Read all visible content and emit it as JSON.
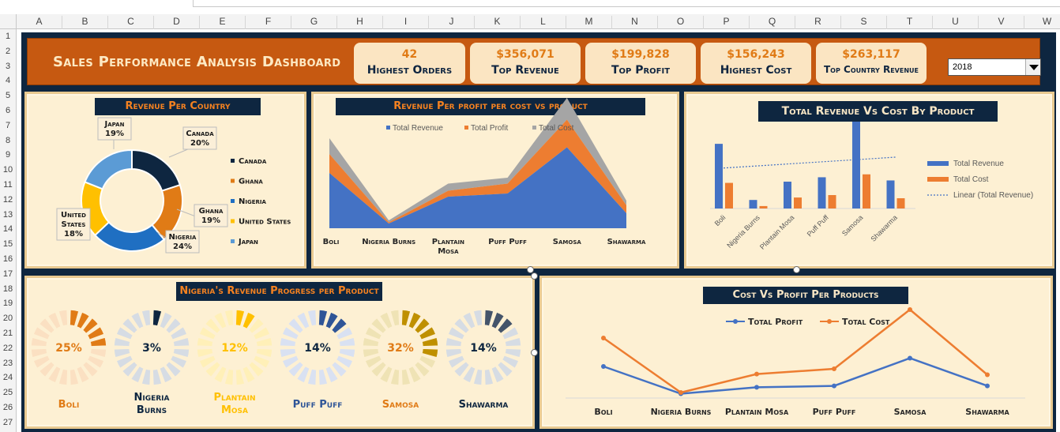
{
  "sheet": {
    "columns": [
      "A",
      "B",
      "C",
      "D",
      "E",
      "F",
      "G",
      "H",
      "I",
      "J",
      "K",
      "L",
      "M",
      "N",
      "O",
      "P",
      "Q",
      "R",
      "S",
      "T",
      "U",
      "V",
      "W"
    ],
    "rows": [
      "1",
      "2",
      "3",
      "4",
      "5",
      "6",
      "7",
      "8",
      "9",
      "10",
      "11",
      "12",
      "13",
      "14",
      "15",
      "16",
      "17",
      "18",
      "19",
      "20",
      "21",
      "22",
      "23",
      "24",
      "25",
      "26",
      "27"
    ]
  },
  "dashboard": {
    "title": "Sales Performance Analysis Dashboard",
    "kpis": [
      {
        "value": "42",
        "label": "Highest Orders"
      },
      {
        "value": "$356,071",
        "label": "Top Revenue"
      },
      {
        "value": "$199,828",
        "label": "Top Profit"
      },
      {
        "value": "$156,243",
        "label": "Highest Cost"
      },
      {
        "value": "$263,117",
        "label": "Top Country Revenue"
      }
    ],
    "year_filter": {
      "selected": "2018"
    }
  },
  "colors": {
    "navy": "#0e2640",
    "orange": "#c65911",
    "accent": "#f58220",
    "cream": "#fdf0d3",
    "blue": "#4472c4",
    "chart_orange": "#ed7d31",
    "gray": "#a5a5a5"
  },
  "chart_data": [
    {
      "type": "pie",
      "title": "Revenue Per Country",
      "categories": [
        "Canada",
        "Ghana",
        "Nigeria",
        "United States",
        "Japan"
      ],
      "values": [
        20,
        19,
        24,
        18,
        19
      ],
      "callouts": [
        {
          "name": "Canada",
          "pct": "20%"
        },
        {
          "name": "Ghana",
          "pct": "19%"
        },
        {
          "name": "Nigeria",
          "pct": "24%"
        },
        {
          "name": "United States",
          "pct": "18%"
        },
        {
          "name": "Japan",
          "pct": "19%"
        }
      ],
      "colors": [
        "#0e2640",
        "#e07b16",
        "#1f6fc2",
        "#ffc000",
        "#5b9bd5"
      ],
      "legend": "right"
    },
    {
      "type": "area",
      "title": "Revenue Per profit per cost vs product",
      "categories": [
        "Boli",
        "Nigeria Burns",
        "Plantain Mosa",
        "Puff Puff",
        "Samosa",
        "Shawarma"
      ],
      "series": [
        {
          "name": "Total Revenue",
          "values": [
            140,
            12,
            80,
            88,
            205,
            38
          ]
        },
        {
          "name": "Total Profit",
          "values": [
            48,
            3,
            15,
            25,
            70,
            20
          ]
        },
        {
          "name": "Total Cost",
          "values": [
            40,
            5,
            18,
            15,
            55,
            12
          ]
        }
      ],
      "stacked": true,
      "legend": "top"
    },
    {
      "type": "bar",
      "title": "Total Revenue Vs Cost By Product",
      "categories": [
        "Boli",
        "Nigeria Burns",
        "Plantain Mosa",
        "Puff Puff",
        "Samosa",
        "Shawarma"
      ],
      "series": [
        {
          "name": "Total Revenue",
          "values": [
            265,
            35,
            110,
            128,
            356,
            115
          ]
        },
        {
          "name": "Total Cost",
          "values": [
            105,
            10,
            45,
            55,
            140,
            42
          ]
        }
      ],
      "trendline": "Linear (Total Revenue)",
      "ylim": [
        0,
        356
      ],
      "legend": "right"
    },
    {
      "type": "bar",
      "title": "Nigeria's Revenue Progress per Product",
      "categories": [
        "Boli",
        "Nigeria Burns",
        "Plantain Mosa",
        "Puff Puff",
        "Samosa",
        "Shawarma"
      ],
      "values": [
        25,
        3,
        12,
        14,
        32,
        14
      ],
      "labels": [
        "25%",
        "3%",
        "12%",
        "14%",
        "32%",
        "14%"
      ],
      "colors": [
        "#e07b16",
        "#0e2640",
        "#ffc000",
        "#2f5597",
        "#bf9000",
        "#44546a"
      ],
      "light_colors": [
        "#fbe0c2",
        "#d6dce4",
        "#fff0b8",
        "#d9e1f2",
        "#efe3b5",
        "#d6dce4"
      ]
    },
    {
      "type": "line",
      "title": "Cost Vs Profit Per Products",
      "categories": [
        "Boli",
        "Nigeria Burns",
        "Plantain Mosa",
        "Puff Puff",
        "Samosa",
        "Shawarma"
      ],
      "series": [
        {
          "name": "Total Profit",
          "values": [
            120,
            5,
            32,
            38,
            155,
            38
          ]
        },
        {
          "name": "Total Cost",
          "values": [
            240,
            10,
            88,
            110,
            360,
            85
          ]
        }
      ],
      "legend": "top"
    }
  ]
}
